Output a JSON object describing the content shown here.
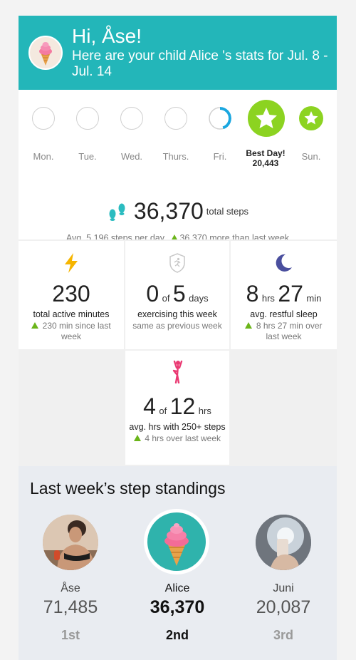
{
  "header": {
    "greeting": "Hi, Åse!",
    "subtitle": "Here are your child Alice 's stats for Jul. 8 - Jul. 14",
    "accent": "#23b6b9"
  },
  "week": {
    "days": [
      {
        "label": "Mon.",
        "progress": 0
      },
      {
        "label": "Tue.",
        "progress": 0
      },
      {
        "label": "Wed.",
        "progress": 0
      },
      {
        "label": "Thurs.",
        "progress": 0
      },
      {
        "label": "Fri.",
        "progress": 0.45
      },
      {
        "label": "Best Day!",
        "value": "20,443",
        "progress": 1,
        "best": true
      },
      {
        "label": "Sun.",
        "progress": 1
      }
    ],
    "complete_color": "#8cd321"
  },
  "steps": {
    "total": "36,370",
    "unit": "total steps",
    "avg": "Avg. 5,196 steps per day.",
    "more": "36,370 more than last week"
  },
  "stats": {
    "active": {
      "value": "230",
      "desc": "total active minutes",
      "note": "230 min since last week"
    },
    "exercise": {
      "value": "0",
      "of": "of",
      "total": "5",
      "unit": "days",
      "desc": "exercising this week",
      "note": "same as previous week"
    },
    "sleep": {
      "hrs": "8",
      "hrs_unit": "hrs",
      "min": "27",
      "min_unit": "min",
      "desc": "avg. restful sleep",
      "note": "8 hrs 27 min over last week"
    },
    "hourly": {
      "value": "4",
      "of": "of",
      "total": "12",
      "unit": "hrs",
      "desc": "avg. hrs with 250+ steps",
      "note": "4 hrs over last week"
    }
  },
  "standings": {
    "title": "Last week’s step standings",
    "people": [
      {
        "name": "Åse",
        "steps": "71,485",
        "rank": "1st"
      },
      {
        "name": "Alice",
        "steps": "36,370",
        "rank": "2nd"
      },
      {
        "name": "Juni",
        "steps": "20,087",
        "rank": "3rd"
      }
    ]
  }
}
